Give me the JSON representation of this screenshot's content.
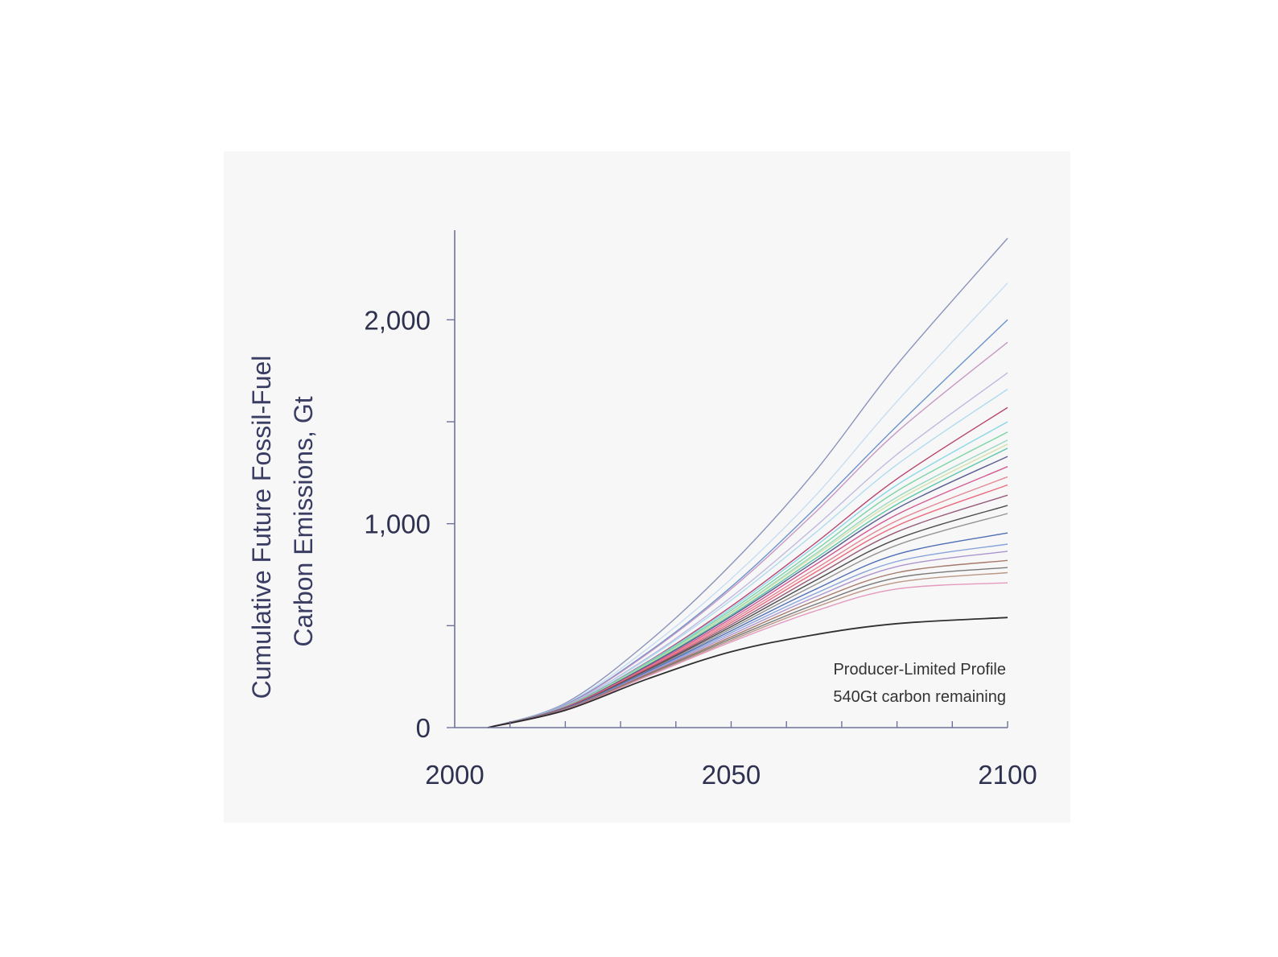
{
  "chart_data": {
    "type": "line",
    "title": "",
    "ylabel_lines": [
      "Cumulative Future Fossil-Fuel",
      "Carbon Emissions, Gt"
    ],
    "xlabel": "",
    "xlim": [
      2000,
      2100
    ],
    "ylim": [
      0,
      2400
    ],
    "x_ticks": [
      2000,
      2050,
      2100
    ],
    "x_tick_labels": [
      "2000",
      "2050",
      "2100"
    ],
    "x_minor_ticks": [
      2010,
      2020,
      2030,
      2040,
      2050,
      2060,
      2070,
      2080,
      2090,
      2100
    ],
    "y_ticks": [
      0,
      1000,
      2000
    ],
    "y_tick_labels": [
      "0",
      "1,000",
      "2,000"
    ],
    "y_minor_ticks": [
      500,
      1500
    ],
    "grid": false,
    "legend": "none",
    "annotation_lines": [
      "Producer-Limited Profile",
      "540Gt carbon remaining"
    ],
    "start_year": 2006,
    "shared_years": [
      2006,
      2020,
      2035,
      2050,
      2065,
      2080,
      2100
    ],
    "series": [
      {
        "color": "#7d87b5",
        "values": [
          0,
          120,
          420,
          800,
          1250,
          1780,
          2400
        ]
      },
      {
        "color": "#c3d9ef",
        "values": [
          0,
          115,
          390,
          730,
          1130,
          1600,
          2180
        ]
      },
      {
        "color": "#5b87c8",
        "values": [
          0,
          112,
          370,
          690,
          1070,
          1480,
          2000
        ]
      },
      {
        "color": "#c08fbf",
        "values": [
          0,
          110,
          365,
          680,
          1050,
          1450,
          1890
        ]
      },
      {
        "color": "#b9b1dc",
        "values": [
          0,
          108,
          345,
          640,
          980,
          1340,
          1740
        ]
      },
      {
        "color": "#a9d8ee",
        "values": [
          0,
          106,
          340,
          625,
          950,
          1290,
          1660
        ]
      },
      {
        "color": "#b03060",
        "values": [
          0,
          104,
          325,
          595,
          900,
          1220,
          1570
        ]
      },
      {
        "color": "#7fd3e6",
        "values": [
          0,
          104,
          322,
          585,
          885,
          1190,
          1500
        ]
      },
      {
        "color": "#6fcf9c",
        "values": [
          0,
          103,
          318,
          575,
          865,
          1160,
          1450
        ]
      },
      {
        "color": "#8fd4ba",
        "values": [
          0,
          102,
          314,
          565,
          848,
          1130,
          1410
        ]
      },
      {
        "color": "#cfe0a0",
        "values": [
          0,
          101,
          312,
          560,
          840,
          1115,
          1390
        ]
      },
      {
        "color": "#4fbf9f",
        "values": [
          0,
          100,
          308,
          552,
          825,
          1095,
          1370
        ]
      },
      {
        "color": "#4a4a8a",
        "values": [
          0,
          100,
          305,
          545,
          812,
          1075,
          1330
        ]
      },
      {
        "color": "#d04a8a",
        "values": [
          0,
          99,
          300,
          535,
          795,
          1045,
          1280
        ]
      },
      {
        "color": "#e07a8a",
        "values": [
          0,
          98,
          296,
          525,
          775,
          1015,
          1230
        ]
      },
      {
        "color": "#e95a70",
        "values": [
          0,
          97,
          292,
          515,
          758,
          990,
          1190
        ]
      },
      {
        "color": "#8b4b6b",
        "values": [
          0,
          96,
          288,
          505,
          738,
          960,
          1140
        ]
      },
      {
        "color": "#3a3a3a",
        "values": [
          0,
          95,
          284,
          495,
          718,
          925,
          1090
        ]
      },
      {
        "color": "#888888",
        "values": [
          0,
          94,
          280,
          485,
          698,
          895,
          1050
        ]
      },
      {
        "color": "#3d5fb0",
        "values": [
          0,
          93,
          276,
          475,
          675,
          850,
          955
        ]
      },
      {
        "color": "#7d9ad6",
        "values": [
          0,
          92,
          272,
          465,
          655,
          815,
          900
        ]
      },
      {
        "color": "#a48ac9",
        "values": [
          0,
          91,
          268,
          455,
          638,
          790,
          865
        ]
      },
      {
        "color": "#9c6b5b",
        "values": [
          0,
          90,
          264,
          445,
          620,
          760,
          820
        ]
      },
      {
        "color": "#6b6b6b",
        "values": [
          0,
          89,
          260,
          436,
          602,
          735,
          785
        ]
      },
      {
        "color": "#b58d7a",
        "values": [
          0,
          88,
          257,
          428,
          588,
          712,
          760
        ]
      },
      {
        "color": "#e08fb8",
        "values": [
          0,
          87,
          253,
          420,
          570,
          680,
          710
        ]
      },
      {
        "color": "#1a1a1a",
        "values": [
          0,
          85,
          240,
          372,
          455,
          510,
          540
        ]
      }
    ]
  }
}
